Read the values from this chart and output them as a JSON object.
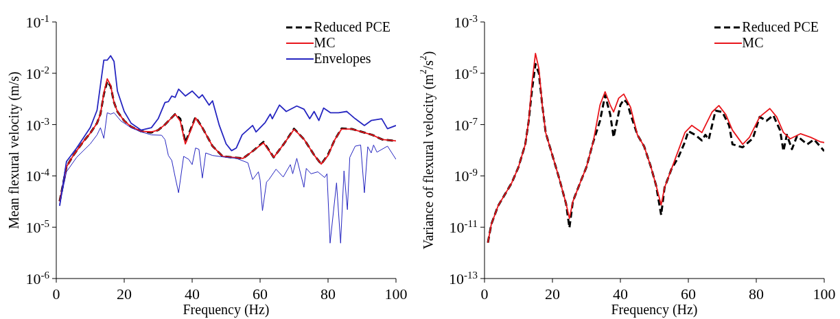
{
  "chart_data": [
    {
      "type": "line",
      "xlabel": "Frequency (Hz)",
      "ylabel": "Mean flexural velocity (m/s)",
      "log": "y",
      "legend": "top right",
      "xlim": [
        0,
        100
      ],
      "xticks": [
        0,
        20,
        40,
        60,
        80,
        100
      ],
      "ylim": [
        1e-06,
        0.1
      ],
      "yticks": [
        {
          "value": 1e-06,
          "label": "10$^{-6}$"
        },
        {
          "value": 1e-05,
          "label": "10$^{-5}$"
        },
        {
          "value": 0.0001,
          "label": "10$^{-4}$"
        },
        {
          "value": 0.001,
          "label": "10$^{-3}$"
        },
        {
          "value": 0.01,
          "label": "10$^{-2}$"
        },
        {
          "value": 0.1,
          "label": "10$^{-1}$"
        }
      ],
      "series": [
        {
          "name": "Reduced PCE",
          "color": "#000000",
          "line_style": "dashed",
          "x": [
            1,
            3,
            5,
            8,
            10,
            12,
            13,
            14,
            15,
            16,
            17,
            18,
            20,
            22,
            25,
            28,
            30,
            32,
            35,
            36.5,
            38,
            41,
            43,
            46,
            49,
            52,
            55,
            58,
            61,
            64,
            67,
            70,
            73,
            76,
            78,
            80,
            82,
            84,
            87,
            90,
            93,
            96,
            100
          ],
          "values": [
            3.2e-05,
            0.00015,
            0.00025,
            0.00047,
            0.00068,
            0.00107,
            0.0016,
            0.0039,
            0.007,
            0.0056,
            0.0027,
            0.0018,
            0.00118,
            0.00091,
            0.00074,
            0.0007,
            0.00078,
            0.001,
            0.0016,
            0.0013,
            0.00045,
            0.0014,
            0.00087,
            0.00038,
            0.00024,
            0.00023,
            0.00022,
            0.00031,
            0.00046,
            0.00023,
            0.00042,
            0.00083,
            0.00051,
            0.00025,
            0.00017,
            0.00026,
            0.00051,
            0.00084,
            0.00082,
            0.00072,
            0.00063,
            0.00051,
            0.00048
          ]
        },
        {
          "name": "MC",
          "color": "#e8151b",
          "x": [
            1,
            3,
            5,
            8,
            10,
            12,
            13,
            14,
            15,
            16,
            17,
            18,
            20,
            22,
            25,
            28,
            30,
            32,
            35,
            36.5,
            38,
            41,
            43,
            46,
            49,
            52,
            55,
            58,
            61,
            64,
            67,
            70,
            73,
            76,
            78,
            80,
            82,
            84,
            87,
            90,
            93,
            96,
            100
          ],
          "values": [
            3.2e-05,
            0.00015,
            0.00025,
            0.00047,
            0.00068,
            0.00107,
            0.0016,
            0.0041,
            0.0078,
            0.0058,
            0.0027,
            0.0018,
            0.00118,
            0.00091,
            0.00074,
            0.00072,
            0.00078,
            0.001,
            0.0016,
            0.00117,
            0.00042,
            0.00135,
            0.00087,
            0.00038,
            0.00024,
            0.00023,
            0.00022,
            0.00031,
            0.00044,
            0.00023,
            0.00042,
            0.00081,
            0.00051,
            0.00025,
            0.00017,
            0.00025,
            0.00051,
            0.00082,
            0.00082,
            0.00072,
            0.00063,
            0.00051,
            0.00048
          ]
        },
        {
          "name": "Envelopes",
          "color": "#2525c0",
          "x": [
            1,
            3,
            6,
            10,
            12,
            14,
            15,
            16,
            17,
            18,
            20,
            22,
            25,
            28,
            30,
            32,
            33,
            34,
            35,
            36,
            38,
            40,
            42,
            43,
            45,
            46,
            48,
            50,
            51.6,
            53,
            54.7,
            57.8,
            58.8,
            61.5,
            63,
            63.6,
            65.7,
            67.7,
            70.8,
            72.9,
            74.6,
            75.9,
            77.3,
            78.7,
            80.7,
            83.1,
            85.5,
            88,
            90.7,
            92.7,
            95.8,
            97.5,
            100
          ],
          "values": [
            2.6e-05,
            0.00019,
            0.00035,
            0.00087,
            0.0019,
            0.018,
            0.018,
            0.022,
            0.017,
            0.0045,
            0.0018,
            0.00107,
            0.00078,
            0.00087,
            0.0013,
            0.0027,
            0.0028,
            0.0036,
            0.0034,
            0.0049,
            0.0036,
            0.0045,
            0.0033,
            0.0038,
            0.0024,
            0.0029,
            0.00096,
            0.00042,
            0.00031,
            0.00035,
            0.00063,
            0.00096,
            0.00072,
            0.0011,
            0.0016,
            0.0013,
            0.0024,
            0.0018,
            0.0023,
            0.002,
            0.0013,
            0.0018,
            0.0012,
            0.0021,
            0.0017,
            0.0017,
            0.0018,
            0.0013,
            0.00096,
            0.0012,
            0.0013,
            0.00083,
            0.00096
          ]
        },
        {
          "color": "#2525c0",
          "x": [
            1,
            3,
            6,
            10,
            12,
            13,
            14,
            15,
            16,
            17,
            19,
            22,
            25,
            28,
            31,
            32,
            33,
            34,
            35,
            36,
            37.5,
            39,
            40,
            41,
            42,
            43,
            44,
            46,
            50,
            53,
            56.4,
            57.8,
            59.5,
            60,
            60.7,
            61.9,
            62.6,
            64.7,
            66.8,
            68.9,
            69.6,
            70.8,
            72.9,
            73.6,
            75,
            77,
            79,
            79.7,
            80.6,
            82.5,
            83.7,
            84.7,
            85.7,
            86.4,
            88,
            89.6,
            90.7,
            91.7,
            92.7,
            93.4,
            94.4,
            97.5,
            100
          ],
          "values": [
            2.8e-05,
            0.00012,
            0.00023,
            0.00042,
            0.00063,
            0.00087,
            0.00054,
            0.0017,
            0.0016,
            0.0017,
            0.00118,
            0.00087,
            0.00072,
            0.00063,
            0.00062,
            0.00051,
            0.00025,
            0.0002,
            9.5e-05,
            4.7e-05,
            0.00024,
            0.00021,
            0.000166,
            0.00035,
            0.00033,
            9.1e-05,
            0.00028,
            0.00025,
            0.00023,
            0.00022,
            0.00018,
            8.5e-05,
            0.00012,
            8.3e-05,
            2.1e-05,
            7.6e-05,
            8.5e-05,
            0.000135,
            9.5e-05,
            0.000166,
            0.00011,
            0.00022,
            6e-05,
            0.00014,
            0.00011,
            0.00012,
            9.3e-05,
            0.00011,
            4.9e-06,
            7.3e-05,
            4.9e-06,
            0.000125,
            2.2e-05,
            0.00023,
            0.00038,
            0.0004,
            4.7e-05,
            0.00037,
            0.00028,
            0.0004,
            0.00029,
            0.00038,
            0.00021
          ]
        }
      ]
    },
    {
      "type": "line",
      "xlabel": "Frequency (Hz)",
      "ylabel": "Variance of flexural velocity (m$^{2}$/s$^{2}$)",
      "log": "y",
      "legend": "top right",
      "xlim": [
        0,
        100
      ],
      "xticks": [
        0,
        20,
        40,
        60,
        80,
        100
      ],
      "ylim": [
        1e-13,
        0.001
      ],
      "yticks": [
        {
          "value": 1e-13,
          "label": "10$^{-13}$"
        },
        {
          "value": 1e-11,
          "label": "10$^{-11}$"
        },
        {
          "value": 1e-09,
          "label": "10$^{-9}$"
        },
        {
          "value": 1e-07,
          "label": "10$^{-7}$"
        },
        {
          "value": 1e-05,
          "label": "10$^{-5}$"
        },
        {
          "value": 0.001,
          "label": "10$^{-3}$"
        }
      ],
      "series": [
        {
          "name": "Reduced PCE",
          "color": "#000000",
          "line_style": "dashed",
          "x": [
            1,
            2,
            4,
            6,
            8,
            10,
            12,
            13,
            14,
            15,
            16,
            17,
            18,
            20,
            22,
            24,
            25,
            26,
            28,
            30,
            32,
            34,
            35.5,
            37,
            38,
            40,
            41,
            42,
            43,
            45,
            47,
            49,
            50.5,
            52,
            53,
            55,
            57,
            59,
            60,
            62,
            64,
            65,
            66,
            68,
            70,
            72,
            73,
            76,
            79,
            81,
            83,
            85,
            87,
            88,
            89,
            90.5,
            92,
            95,
            97,
            100
          ],
          "values": [
            2.5e-12,
            1.3e-11,
            6.8e-11,
            1.9e-10,
            5.3e-10,
            2.2e-09,
            1.7e-08,
            1.35e-07,
            2.4e-06,
            2.3e-05,
            1e-05,
            5.8e-07,
            4.9e-08,
            6.2e-09,
            7.9e-10,
            8.3e-11,
            9.5e-12,
            1e-10,
            4.8e-10,
            2.2e-09,
            2.1e-08,
            1.4e-07,
            1.4e-06,
            2.5e-07,
            3.2e-08,
            5.8e-07,
            9.5e-07,
            7e-07,
            2.5e-07,
            4e-08,
            1.4e-08,
            2.2e-09,
            4.3e-10,
            3e-11,
            3.5e-10,
            1.8e-09,
            5.1e-09,
            2.1e-08,
            5.5e-08,
            4e-08,
            2.4e-08,
            4e-08,
            2.6e-08,
            3.5e-07,
            3.1e-07,
            9.3e-08,
            1.7e-08,
            1.3e-08,
            2.9e-08,
            2e-07,
            1.4e-07,
            2.3e-07,
            6e-08,
            9.3e-09,
            4e-08,
            1.1e-08,
            3.6e-08,
            1.7e-08,
            2.6e-08,
            9.3e-09
          ]
        },
        {
          "name": "MC",
          "color": "#e8151b",
          "x": [
            1,
            2,
            4,
            6,
            8,
            10,
            12,
            13,
            14,
            15,
            16,
            17,
            18,
            20,
            22,
            24,
            25,
            26,
            28,
            30,
            32,
            34,
            35.5,
            37,
            38,
            39.5,
            41,
            43,
            45,
            47,
            49,
            50.5,
            52,
            53,
            55,
            57,
            59,
            61,
            64,
            67,
            69,
            71,
            73,
            76,
            78,
            81,
            84,
            86,
            88,
            90,
            93,
            96,
            99,
            100
          ],
          "values": [
            2.5e-12,
            1.3e-11,
            6.8e-11,
            1.9e-10,
            5.3e-10,
            2.2e-09,
            1.7e-08,
            1.35e-07,
            4.5e-06,
            5.9e-05,
            1.55e-05,
            5.8e-07,
            4.9e-08,
            6.2e-09,
            7.9e-10,
            8.3e-11,
            2.2e-11,
            1e-10,
            4.8e-10,
            2.2e-09,
            2.1e-08,
            5.8e-07,
            1.9e-06,
            5.8e-07,
            3.1e-07,
            1.07e-06,
            1.55e-06,
            4.7e-07,
            4e-08,
            1.4e-08,
            2.2e-09,
            4.3e-10,
            7.4e-11,
            3.5e-10,
            1.8e-09,
            9.3e-09,
            4.9e-08,
            9.3e-08,
            4.9e-08,
            3.1e-07,
            5.5e-07,
            2.5e-07,
            6e-08,
            1.7e-08,
            3.2e-08,
            2e-07,
            4.2e-07,
            2e-07,
            4.9e-08,
            2.8e-08,
            4.4e-08,
            3.2e-08,
            2.1e-08,
            2e-08
          ]
        }
      ]
    }
  ]
}
